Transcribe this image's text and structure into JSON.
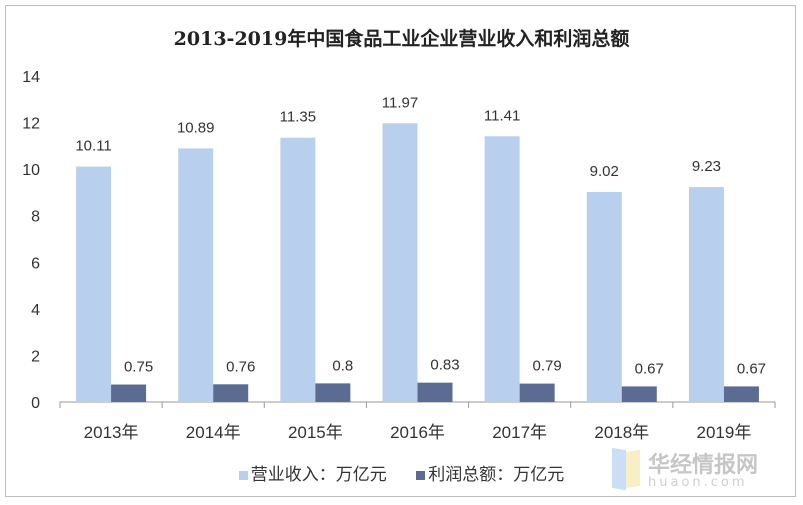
{
  "chart_data": {
    "type": "bar",
    "title": "2013-2019年中国食品工业企业营业收入和利润总额",
    "categories": [
      "2013年",
      "2014年",
      "2015年",
      "2016年",
      "2017年",
      "2018年",
      "2019年"
    ],
    "series": [
      {
        "name": "营业收入：万亿元",
        "values": [
          10.11,
          10.89,
          11.35,
          11.97,
          11.41,
          9.02,
          9.23
        ],
        "color": "#b8d0ee"
      },
      {
        "name": "利润总额：万亿元",
        "values": [
          0.75,
          0.76,
          0.8,
          0.83,
          0.79,
          0.67,
          0.67
        ],
        "color": "#5b6b91"
      }
    ],
    "labels": [
      [
        "10.11",
        "10.89",
        "11.35",
        "11.97",
        "11.41",
        "9.02",
        "9.23"
      ],
      [
        "0.75",
        "0.76",
        "0.8",
        "0.83",
        "0.79",
        "0.67",
        "0.67"
      ]
    ],
    "ylim": [
      0,
      14
    ],
    "yticks": [
      "0",
      "2",
      "4",
      "6",
      "8",
      "10",
      "12",
      "14"
    ],
    "grid": false,
    "legend": "bottom"
  },
  "watermark": {
    "cn": "华经情报网",
    "en": "huaon.com"
  }
}
